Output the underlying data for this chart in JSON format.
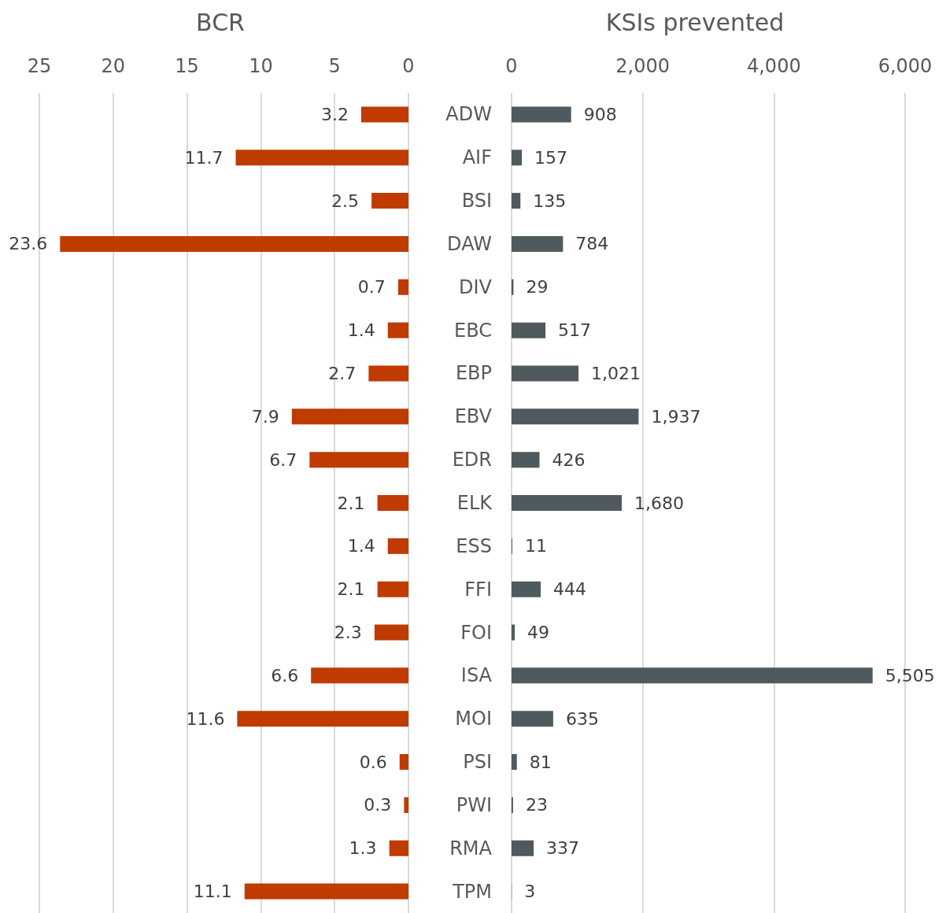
{
  "chart_data": [
    {
      "type": "bar",
      "title": "BCR",
      "orientation": "horizontal",
      "categories": [
        "ADW",
        "AIF",
        "BSI",
        "DAW",
        "DIV",
        "EBC",
        "EBP",
        "EBV",
        "EDR",
        "ELK",
        "ESS",
        "FFI",
        "FOI",
        "ISA",
        "MOI",
        "PSI",
        "PWI",
        "RMA",
        "TPM"
      ],
      "values": [
        3.2,
        11.7,
        2.5,
        23.6,
        0.7,
        1.4,
        2.7,
        7.9,
        6.7,
        2.1,
        1.4,
        2.1,
        2.3,
        6.6,
        11.6,
        0.6,
        0.3,
        1.3,
        11.1
      ],
      "color": "#bf3b00",
      "xlim": [
        25,
        0
      ],
      "xticks": [
        25,
        20,
        15,
        10,
        5,
        0
      ],
      "grid": "x",
      "data_labels": true
    },
    {
      "type": "bar",
      "title": "KSIs prevented",
      "orientation": "horizontal",
      "values": [
        908,
        157,
        135,
        784,
        29,
        517,
        1021,
        1937,
        426,
        1680,
        11,
        444,
        49,
        5505,
        635,
        81,
        23,
        337,
        3
      ],
      "color": "#4f5a5e",
      "value_labels": [
        "908",
        "157",
        "135",
        "784",
        "29",
        "517",
        "1,021",
        "1,937",
        "426",
        "1,680",
        "11",
        "444",
        "49",
        "5,505",
        "635",
        "81",
        "23",
        "337",
        "3"
      ],
      "xlim": [
        0,
        6000
      ],
      "xticks": [
        0,
        {
          "value": 2000,
          "label": "2,000"
        },
        {
          "value": 4000,
          "label": "4,000"
        },
        {
          "value": 6000,
          "label": "6,000"
        }
      ],
      "grid": "x",
      "tick_labels": "x"
    }
  ]
}
